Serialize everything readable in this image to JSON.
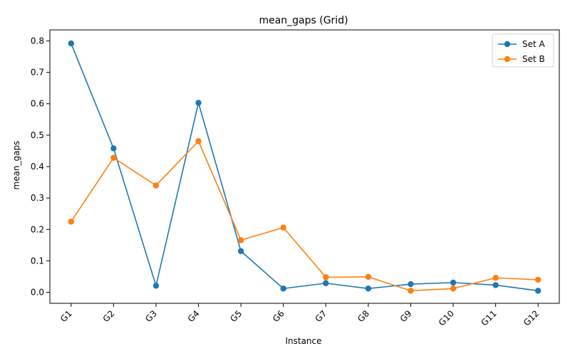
{
  "chart_data": {
    "type": "line",
    "title": "mean_gaps (Grid)",
    "xlabel": "Instance",
    "ylabel": "mean_gaps",
    "categories": [
      "G1",
      "G2",
      "G3",
      "G4",
      "G5",
      "G6",
      "G7",
      "G8",
      "G9",
      "G10",
      "G11",
      "G12"
    ],
    "ylim": [
      -0.035,
      0.835
    ],
    "yticks": [
      0.0,
      0.1,
      0.2,
      0.3,
      0.4,
      0.5,
      0.6,
      0.7,
      0.8
    ],
    "ytick_labels": [
      "0.0",
      "0.1",
      "0.2",
      "0.3",
      "0.4",
      "0.5",
      "0.6",
      "0.7",
      "0.8"
    ],
    "grid": false,
    "legend_position": "top-right",
    "series": [
      {
        "name": "Set A",
        "color": "#1f77b4",
        "values": [
          0.792,
          0.458,
          0.021,
          0.603,
          0.131,
          0.012,
          0.029,
          0.012,
          0.026,
          0.031,
          0.023,
          0.005
        ]
      },
      {
        "name": "Set B",
        "color": "#ff7f0e",
        "values": [
          0.225,
          0.428,
          0.34,
          0.481,
          0.166,
          0.206,
          0.048,
          0.049,
          0.005,
          0.012,
          0.046,
          0.04
        ]
      }
    ]
  }
}
